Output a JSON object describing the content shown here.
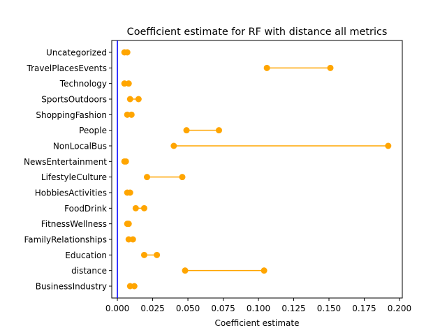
{
  "chart_data": {
    "type": "dumbbell",
    "title": "Coefficient estimate for RF with distance all metrics",
    "xlabel": "Coefficient estimate",
    "ylabel": "",
    "xlim": [
      -0.004,
      0.202
    ],
    "xticks": [
      0.0,
      0.025,
      0.05,
      0.075,
      0.1,
      0.125,
      0.15,
      0.175,
      0.2
    ],
    "xtick_labels": [
      "0.000",
      "0.025",
      "0.050",
      "0.075",
      "0.100",
      "0.125",
      "0.150",
      "0.175",
      "0.200"
    ],
    "grid": false,
    "reference_line": {
      "x": 0.0,
      "color": "#0000ff"
    },
    "marker_color": "#ffa500",
    "categories": [
      "Uncategorized",
      "TravelPlacesEvents",
      "Technology",
      "SportsOutdoors",
      "ShoppingFashion",
      "People",
      "NonLocalBus",
      "NewsEntertainment",
      "LifestyleCulture",
      "HobbiesActivities",
      "FoodDrink",
      "FitnessWellness",
      "FamilyRelationships",
      "Education",
      "distance",
      "BusinessIndustry"
    ],
    "low": [
      0.005,
      0.106,
      0.005,
      0.009,
      0.007,
      0.049,
      0.04,
      0.005,
      0.021,
      0.007,
      0.013,
      0.007,
      0.008,
      0.019,
      0.048,
      0.009
    ],
    "high": [
      0.007,
      0.151,
      0.008,
      0.015,
      0.01,
      0.072,
      0.192,
      0.006,
      0.046,
      0.009,
      0.019,
      0.008,
      0.011,
      0.028,
      0.104,
      0.012
    ]
  }
}
